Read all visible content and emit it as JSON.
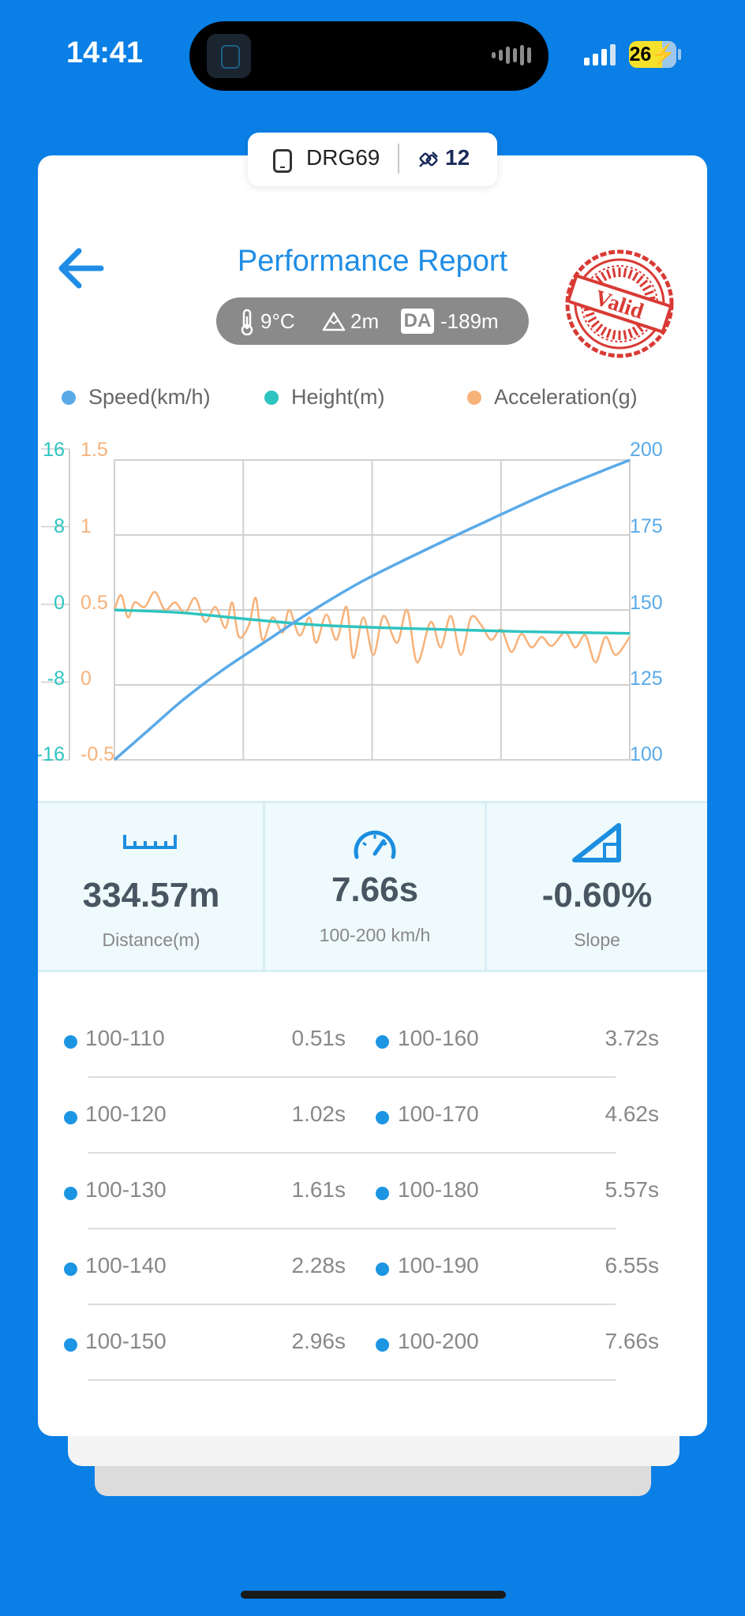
{
  "status_bar": {
    "time": "14:41",
    "battery": "26"
  },
  "device": {
    "name": "DRG69",
    "satellites": "12"
  },
  "header": {
    "title": "Performance Report",
    "stamp_text": "Valid"
  },
  "conditions": {
    "temperature": "9°C",
    "altitude": "2m",
    "da_badge": "DA",
    "density_altitude": "-189m"
  },
  "legend": [
    {
      "label": "Speed(km/h)",
      "color": "#5aaae8"
    },
    {
      "label": "Height(m)",
      "color": "#2ec4c0"
    },
    {
      "label": "Acceleration(g)",
      "color": "#f7b27a"
    }
  ],
  "chart_data": {
    "type": "line",
    "x_range": [
      0,
      7.66
    ],
    "axes": {
      "height_ticks": [
        "16",
        "8",
        "0",
        "-8",
        "-16"
      ],
      "accel_ticks": [
        "1.5",
        "1",
        "0.5",
        "0",
        "-0.5"
      ],
      "speed_ticks": [
        "200",
        "175",
        "150",
        "125",
        "100"
      ],
      "height_range": [
        -16,
        16
      ],
      "accel_range": [
        -0.5,
        1.5
      ],
      "speed_range": [
        100,
        200
      ]
    },
    "grid": true,
    "series": [
      {
        "name": "Speed(km/h)",
        "axis": "right",
        "color": "#5aaae8",
        "points": [
          [
            0,
            100
          ],
          [
            0.51,
            110
          ],
          [
            1.02,
            120
          ],
          [
            1.61,
            130
          ],
          [
            2.28,
            140
          ],
          [
            2.96,
            150
          ],
          [
            3.72,
            160
          ],
          [
            4.62,
            170
          ],
          [
            5.57,
            180
          ],
          [
            6.55,
            190
          ],
          [
            7.66,
            200
          ]
        ]
      },
      {
        "name": "Height(m)",
        "axis": "left",
        "color": "#2ec4c0",
        "points": [
          [
            0,
            0
          ],
          [
            1,
            -0.3
          ],
          [
            2,
            -1.0
          ],
          [
            3,
            -1.6
          ],
          [
            4,
            -1.9
          ],
          [
            5,
            -2.1
          ],
          [
            6,
            -2.3
          ],
          [
            7.66,
            -2.5
          ]
        ]
      },
      {
        "name": "Acceleration(g)",
        "axis": "left2",
        "color": "#f7b27a",
        "points": [
          [
            0,
            0.5
          ],
          [
            0.1,
            0.6
          ],
          [
            0.2,
            0.45
          ],
          [
            0.3,
            0.55
          ],
          [
            0.45,
            0.52
          ],
          [
            0.6,
            0.62
          ],
          [
            0.75,
            0.5
          ],
          [
            0.9,
            0.55
          ],
          [
            1.05,
            0.48
          ],
          [
            1.2,
            0.58
          ],
          [
            1.35,
            0.42
          ],
          [
            1.5,
            0.52
          ],
          [
            1.65,
            0.38
          ],
          [
            1.75,
            0.55
          ],
          [
            1.85,
            0.32
          ],
          [
            2.0,
            0.4
          ],
          [
            2.1,
            0.58
          ],
          [
            2.2,
            0.3
          ],
          [
            2.35,
            0.45
          ],
          [
            2.5,
            0.35
          ],
          [
            2.6,
            0.5
          ],
          [
            2.75,
            0.33
          ],
          [
            2.9,
            0.45
          ],
          [
            3.0,
            0.28
          ],
          [
            3.15,
            0.47
          ],
          [
            3.3,
            0.3
          ],
          [
            3.45,
            0.52
          ],
          [
            3.55,
            0.18
          ],
          [
            3.7,
            0.45
          ],
          [
            3.85,
            0.2
          ],
          [
            4.0,
            0.46
          ],
          [
            4.2,
            0.28
          ],
          [
            4.35,
            0.5
          ],
          [
            4.5,
            0.15
          ],
          [
            4.7,
            0.42
          ],
          [
            4.85,
            0.25
          ],
          [
            5.0,
            0.46
          ],
          [
            5.15,
            0.2
          ],
          [
            5.3,
            0.45
          ],
          [
            5.45,
            0.4
          ],
          [
            5.6,
            0.3
          ],
          [
            5.75,
            0.37
          ],
          [
            5.9,
            0.22
          ],
          [
            6.05,
            0.34
          ],
          [
            6.2,
            0.25
          ],
          [
            6.35,
            0.32
          ],
          [
            6.5,
            0.26
          ],
          [
            6.7,
            0.35
          ],
          [
            6.85,
            0.25
          ],
          [
            7.0,
            0.33
          ],
          [
            7.15,
            0.15
          ],
          [
            7.3,
            0.32
          ],
          [
            7.45,
            0.2
          ],
          [
            7.66,
            0.32
          ]
        ]
      }
    ]
  },
  "stats": {
    "distance": {
      "value": "334.57m",
      "label": "Distance(m)"
    },
    "time": {
      "value": "7.66s",
      "label": "100-200 km/h"
    },
    "slope": {
      "value": "-0.60%",
      "label": "Slope"
    }
  },
  "splits": [
    {
      "left_label": "100-110",
      "left_time": "0.51s",
      "right_label": "100-160",
      "right_time": "3.72s"
    },
    {
      "left_label": "100-120",
      "left_time": "1.02s",
      "right_label": "100-170",
      "right_time": "4.62s"
    },
    {
      "left_label": "100-130",
      "left_time": "1.61s",
      "right_label": "100-180",
      "right_time": "5.57s"
    },
    {
      "left_label": "100-140",
      "left_time": "2.28s",
      "right_label": "100-190",
      "right_time": "6.55s"
    },
    {
      "left_label": "100-150",
      "left_time": "2.96s",
      "right_label": "100-200",
      "right_time": "7.66s"
    }
  ]
}
